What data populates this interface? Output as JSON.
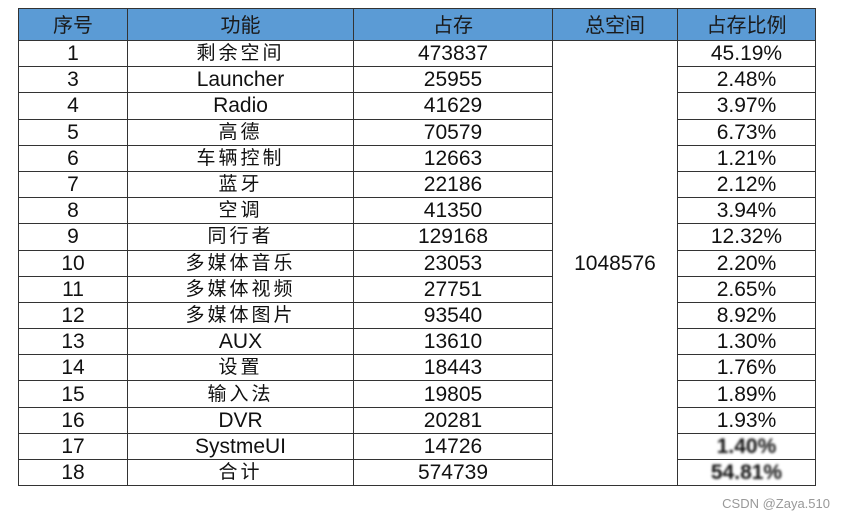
{
  "table": {
    "headers": [
      "序号",
      "功能",
      "占存",
      "总空间",
      "占存比例"
    ],
    "header_color": "#5b9bd5",
    "total_space": "1048576",
    "rows": [
      {
        "no": "1",
        "name": "剩余空间",
        "size": "473837",
        "pct": "45.19%"
      },
      {
        "no": "3",
        "name": "Launcher",
        "size": "25955",
        "pct": "2.48%"
      },
      {
        "no": "4",
        "name": "Radio",
        "size": "41629",
        "pct": "3.97%"
      },
      {
        "no": "5",
        "name": "高德",
        "size": "70579",
        "pct": "6.73%"
      },
      {
        "no": "6",
        "name": "车辆控制",
        "size": "12663",
        "pct": "1.21%"
      },
      {
        "no": "7",
        "name": "蓝牙",
        "size": "22186",
        "pct": "2.12%"
      },
      {
        "no": "8",
        "name": "空调",
        "size": "41350",
        "pct": "3.94%"
      },
      {
        "no": "9",
        "name": "同行者",
        "size": "129168",
        "pct": "12.32%"
      },
      {
        "no": "10",
        "name": "多媒体音乐",
        "size": "23053",
        "pct": "2.20%"
      },
      {
        "no": "11",
        "name": "多媒体视频",
        "size": "27751",
        "pct": "2.65%"
      },
      {
        "no": "12",
        "name": "多媒体图片",
        "size": "93540",
        "pct": "8.92%"
      },
      {
        "no": "13",
        "name": "AUX",
        "size": "13610",
        "pct": "1.30%"
      },
      {
        "no": "14",
        "name": "设置",
        "size": "18443",
        "pct": "1.76%"
      },
      {
        "no": "15",
        "name": "输入法",
        "size": "19805",
        "pct": "1.89%"
      },
      {
        "no": "16",
        "name": "DVR",
        "size": "20281",
        "pct": "1.93%"
      },
      {
        "no": "17",
        "name": "SystmeUI",
        "size": "14726",
        "pct": "1.40%"
      },
      {
        "no": "18",
        "name": "合计",
        "size": "574739",
        "pct": "54.81%"
      }
    ]
  },
  "watermark": "CSDN @Zaya.510"
}
